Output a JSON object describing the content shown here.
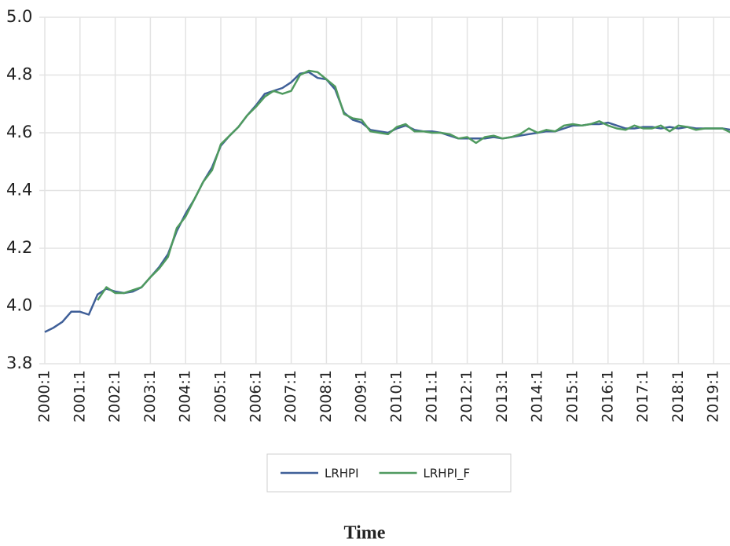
{
  "chart_data": {
    "type": "line",
    "x_label": "Time",
    "categories": [
      "2000:1",
      null,
      null,
      null,
      "2001:1",
      null,
      null,
      null,
      "2002:1",
      null,
      null,
      null,
      "2003:1",
      null,
      null,
      null,
      "2004:1",
      null,
      null,
      null,
      "2005:1",
      null,
      null,
      null,
      "2006:1",
      null,
      null,
      null,
      "2007:1",
      null,
      null,
      null,
      "2008:1",
      null,
      null,
      null,
      "2009:1",
      null,
      null,
      null,
      "2010:1",
      null,
      null,
      null,
      "2011:1",
      null,
      null,
      null,
      "2012:1",
      null,
      null,
      null,
      "2013:1",
      null,
      null,
      null,
      "2014:1",
      null,
      null,
      null,
      "2015:1",
      null,
      null,
      null,
      "2016:1",
      null,
      null,
      null,
      "2017:1",
      null,
      null,
      null,
      "2018:1",
      null,
      null,
      null,
      "2019:1",
      null,
      null
    ],
    "series": [
      {
        "name": "LRHPI",
        "color": "#3f5f98",
        "values": [
          3.91,
          3.925,
          3.945,
          3.98,
          3.98,
          3.97,
          4.04,
          4.06,
          4.05,
          4.045,
          4.05,
          4.065,
          4.1,
          4.135,
          4.18,
          4.26,
          4.32,
          4.37,
          4.43,
          4.48,
          4.555,
          4.59,
          4.62,
          4.66,
          4.695,
          4.735,
          4.745,
          4.755,
          4.775,
          4.805,
          4.81,
          4.79,
          4.785,
          4.75,
          4.67,
          4.645,
          4.635,
          4.61,
          4.605,
          4.6,
          4.615,
          4.625,
          4.61,
          4.605,
          4.605,
          4.6,
          4.59,
          4.58,
          4.58,
          4.58,
          4.58,
          4.585,
          4.58,
          4.585,
          4.59,
          4.595,
          4.6,
          4.605,
          4.605,
          4.615,
          4.625,
          4.625,
          4.63,
          4.63,
          4.635,
          4.625,
          4.615,
          4.615,
          4.62,
          4.62,
          4.615,
          4.62,
          4.615,
          4.62,
          4.615,
          4.615,
          4.615,
          4.615,
          4.61
        ]
      },
      {
        "name": "LRHPI_F",
        "color": "#4f9a5f",
        "values": [
          null,
          null,
          null,
          null,
          null,
          null,
          4.02,
          4.065,
          4.045,
          4.045,
          4.055,
          4.065,
          4.1,
          4.13,
          4.17,
          4.27,
          4.31,
          4.37,
          4.43,
          4.47,
          4.56,
          4.59,
          4.62,
          4.66,
          4.69,
          4.725,
          4.745,
          4.735,
          4.745,
          4.8,
          4.815,
          4.81,
          4.785,
          4.76,
          4.665,
          4.65,
          4.645,
          4.605,
          4.6,
          4.595,
          4.62,
          4.63,
          4.605,
          4.605,
          4.6,
          4.6,
          4.595,
          4.58,
          4.585,
          4.565,
          4.585,
          4.59,
          4.58,
          4.585,
          4.595,
          4.615,
          4.6,
          4.61,
          4.605,
          4.625,
          4.63,
          4.625,
          4.63,
          4.64,
          4.625,
          4.615,
          4.61,
          4.625,
          4.615,
          4.615,
          4.625,
          4.605,
          4.625,
          4.62,
          4.61,
          4.615,
          4.615,
          4.615,
          4.6
        ]
      }
    ],
    "ylim": [
      3.8,
      5.0
    ],
    "yticks": [
      3.8,
      {
        "value": 4.0,
        "label": "4.0"
      },
      4.2,
      4.4,
      4.6,
      4.8,
      {
        "value": 5.0,
        "label": "5.0"
      }
    ],
    "grid": true,
    "legend": "bottom"
  }
}
